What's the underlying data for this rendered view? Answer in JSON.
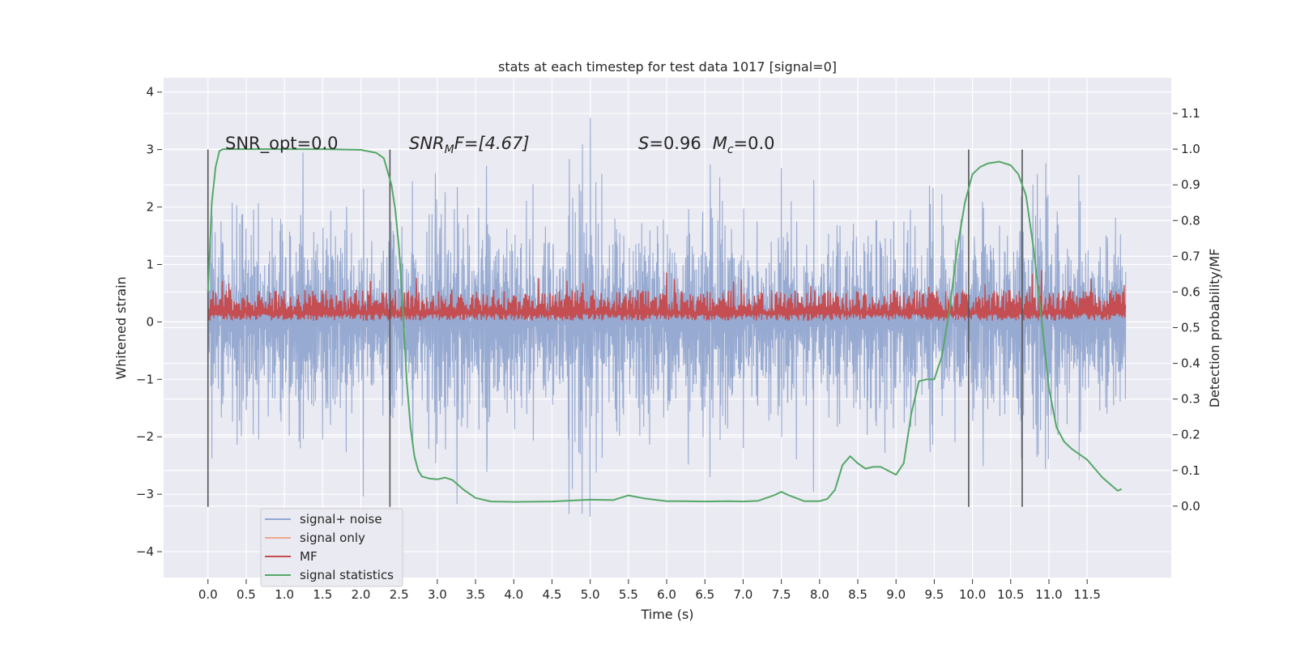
{
  "chart_data": {
    "type": "line",
    "title": "stats at each timestep for test data 1017 [signal=0]",
    "xlabel": "Time (s)",
    "ylabel_left": "Whitened strain",
    "ylabel_right": "Detection probability/MF",
    "xlim": [
      -0.58,
      12.6
    ],
    "ylim_left": [
      -4.45,
      4.25
    ],
    "ylim_right": [
      -0.2,
      1.2
    ],
    "x_ticks": [
      "0.0",
      "0.5",
      "1.0",
      "1.5",
      "2.0",
      "2.5",
      "3.0",
      "3.5",
      "4.0",
      "4.5",
      "5.0",
      "5.5",
      "6.0",
      "6.5",
      "7.0",
      "7.5",
      "8.0",
      "8.5",
      "9.0",
      "9.5",
      "10.0",
      "10.5",
      "11.0",
      "11.5"
    ],
    "y_ticks_left": [
      "−4",
      "−3",
      "−2",
      "−1",
      "0",
      "1",
      "2",
      "3",
      "4"
    ],
    "y_ticks_right": [
      "0.0",
      "0.1",
      "0.2",
      "0.3",
      "0.4",
      "0.5",
      "0.6",
      "0.7",
      "0.8",
      "0.9",
      "1.0",
      "1.1"
    ],
    "grid": true,
    "legend_position": "lower-left",
    "annotations": {
      "snr_opt": "SNR_opt=0.0",
      "snr_mf_main": "SNR",
      "snr_mf_sub": "M",
      "snr_mf_rest": "F=[4.67]",
      "s_label": "S",
      "s_value": "=0.96",
      "mc_label": "M",
      "mc_sub": "c",
      "mc_value": "=0.0"
    },
    "vertical_markers_x": [
      0.0,
      2.38,
      9.95,
      10.65
    ],
    "series": [
      {
        "name": "signal+ noise",
        "color": "#92a6cf",
        "kind": "noise",
        "x_range": [
          0.0,
          12.0
        ],
        "typical_envelope": [
          -2.3,
          2.3
        ],
        "extremes": [
          -4.05,
          3.88
        ]
      },
      {
        "name": "signal only",
        "color": "#eaa98f",
        "kind": "flat",
        "values": [
          0
        ]
      },
      {
        "name": "MF",
        "color": "#c44e52",
        "kind": "band",
        "x_range": [
          0.0,
          12.0
        ],
        "typical_envelope": [
          0.02,
          0.55
        ],
        "extremes": [
          0.0,
          1.0
        ]
      },
      {
        "name": "signal statistics",
        "color": "#55a868",
        "axis": "right",
        "x": [
          0.0,
          0.05,
          0.1,
          0.15,
          0.2,
          0.4,
          0.6,
          1.0,
          1.5,
          2.0,
          2.2,
          2.3,
          2.4,
          2.45,
          2.5,
          2.55,
          2.6,
          2.65,
          2.7,
          2.75,
          2.8,
          2.9,
          3.0,
          3.1,
          3.2,
          3.35,
          3.5,
          3.7,
          4.0,
          4.5,
          5.0,
          5.3,
          5.5,
          5.7,
          6.0,
          6.2,
          6.5,
          6.8,
          7.0,
          7.2,
          7.4,
          7.5,
          7.6,
          7.8,
          8.0,
          8.1,
          8.2,
          8.3,
          8.4,
          8.5,
          8.6,
          8.7,
          8.8,
          9.0,
          9.1,
          9.2,
          9.3,
          9.4,
          9.5,
          9.6,
          9.7,
          9.8,
          9.9,
          10.0,
          10.1,
          10.2,
          10.35,
          10.5,
          10.6,
          10.7,
          10.8,
          10.9,
          11.0,
          11.1,
          11.2,
          11.3,
          11.5,
          11.7,
          11.9,
          11.95
        ],
        "y": [
          0.6,
          0.85,
          0.95,
          0.995,
          1.0,
          1.0,
          1.0,
          1.0,
          1.0,
          0.998,
          0.99,
          0.975,
          0.9,
          0.83,
          0.72,
          0.55,
          0.35,
          0.22,
          0.14,
          0.1,
          0.083,
          0.077,
          0.075,
          0.08,
          0.073,
          0.045,
          0.023,
          0.013,
          0.012,
          0.013,
          0.018,
          0.017,
          0.03,
          0.022,
          0.014,
          0.014,
          0.013,
          0.014,
          0.013,
          0.015,
          0.03,
          0.04,
          0.03,
          0.014,
          0.014,
          0.02,
          0.045,
          0.115,
          0.14,
          0.12,
          0.105,
          0.11,
          0.11,
          0.088,
          0.12,
          0.26,
          0.35,
          0.355,
          0.355,
          0.42,
          0.55,
          0.72,
          0.85,
          0.93,
          0.95,
          0.96,
          0.965,
          0.955,
          0.93,
          0.87,
          0.72,
          0.53,
          0.33,
          0.22,
          0.18,
          0.16,
          0.13,
          0.08,
          0.043,
          0.048
        ]
      }
    ]
  }
}
